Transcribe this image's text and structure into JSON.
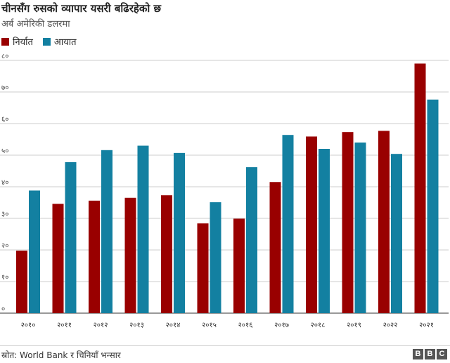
{
  "title": "चीनसँग रुसको व्यापार यसरी बढिरहेको छ",
  "subtitle": "अर्ब अमेरिकी डलरमा",
  "source": "स्रोत: World Bank र चिनियाँ भन्सार",
  "logo": {
    "letters": [
      "B",
      "B",
      "C"
    ]
  },
  "colors": {
    "export": "#990000",
    "import": "#1380A1",
    "grid": "#cccccc"
  },
  "legend": [
    {
      "label": "निर्यात",
      "color": "#990000"
    },
    {
      "label": "आयात",
      "color": "#1380A1"
    }
  ],
  "chart_data": {
    "type": "bar",
    "categories": [
      "२०१०",
      "२०११",
      "२०१२",
      "२०१३",
      "२०१४",
      "२०१५",
      "२०१६",
      "२०१७",
      "२०१८",
      "२०१९",
      "२०२२",
      "२०२१"
    ],
    "series": [
      {
        "name": "निर्यात",
        "color": "#990000",
        "values": [
          19.8,
          34.6,
          35.6,
          36.5,
          37.3,
          28.4,
          29.9,
          41.5,
          55.9,
          57.3,
          57.7,
          79.0
        ]
      },
      {
        "name": "आयात",
        "color": "#1380A1",
        "values": [
          38.8,
          47.8,
          51.6,
          53.0,
          50.7,
          35.1,
          46.2,
          56.4,
          52.0,
          54.0,
          50.4,
          67.6
        ]
      }
    ],
    "yticks": [
      0,
      10,
      20,
      30,
      40,
      50,
      60,
      70,
      80
    ],
    "ytick_labels": [
      "०",
      "१०",
      "२०",
      "३०",
      "४०",
      "५०",
      "६०",
      "७०",
      "८०"
    ],
    "ylim": [
      0,
      80
    ],
    "grid": true,
    "legend_position": "top-left",
    "title": "चीनसँग रुसको व्यापार यसरी बढिरहेको छ",
    "ylabel": "अर्ब अमेरिकी डलरमा",
    "xlabel": ""
  }
}
